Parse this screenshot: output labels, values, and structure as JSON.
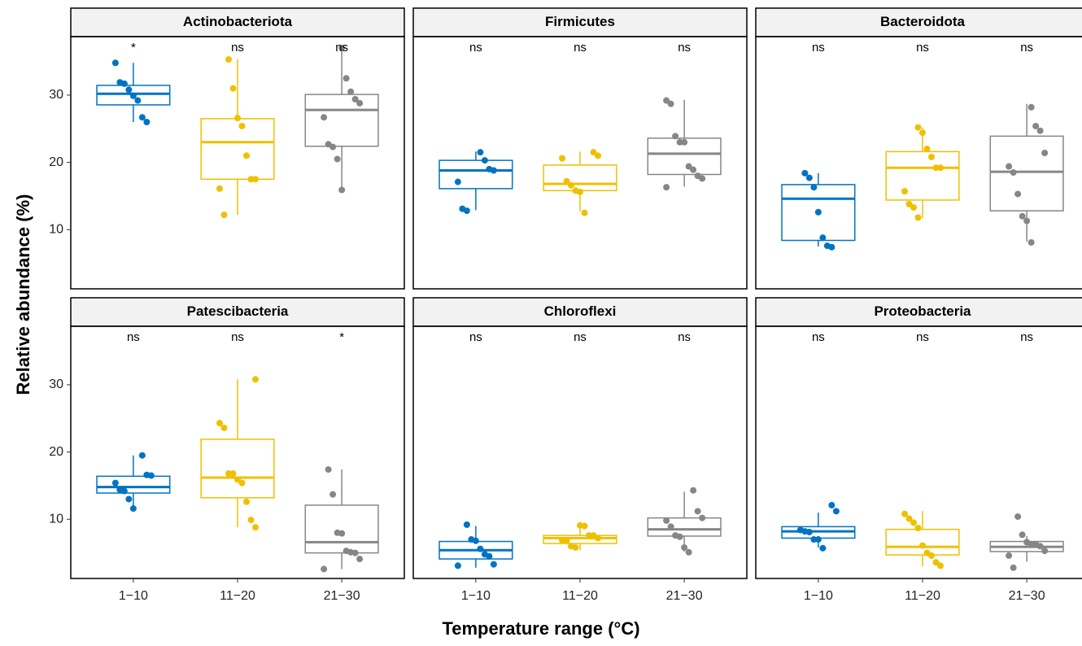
{
  "chart_data": {
    "type": "box",
    "x_label": "Temperature range (°C)",
    "y_label": "Relative abundance (%)",
    "categories": [
      "1−10",
      "11−20",
      "21−30"
    ],
    "colors": [
      "#0073C2",
      "#EFC000",
      "#868686"
    ],
    "ylim": [
      1.2,
      38.7
    ],
    "yticks": [
      10,
      20,
      30
    ],
    "panels": [
      {
        "title": "Actinobacteriota",
        "boxes": [
          {
            "min": 26.0,
            "q1": 28.55,
            "median": 30.2,
            "q3": 31.45,
            "max": 34.8,
            "points": [
              34.8,
              31.9,
              31.7,
              30.8,
              29.9,
              29.2,
              26.7,
              26.0
            ],
            "label": "*"
          },
          {
            "min": 12.2,
            "q1": 17.5,
            "median": 23.0,
            "q3": 26.5,
            "max": 35.3,
            "points": [
              35.3,
              31.0,
              26.6,
              25.4,
              21.0,
              17.5,
              17.5,
              16.1,
              12.2
            ],
            "label": "ns"
          },
          {
            "min": 15.9,
            "q1": 22.4,
            "median": 27.8,
            "q3": 30.1,
            "max": 37.0,
            "points": [
              37.0,
              32.5,
              30.5,
              29.4,
              28.8,
              26.7,
              22.7,
              22.3,
              20.5,
              15.9
            ],
            "label": "ns"
          }
        ]
      },
      {
        "title": "Firmicutes",
        "boxes": [
          {
            "min": 12.9,
            "q1": 16.1,
            "median": 18.8,
            "q3": 20.3,
            "max": 21.6,
            "points": [
              21.5,
              20.3,
              19.0,
              18.8,
              17.1,
              13.1,
              12.8
            ],
            "label": "ns"
          },
          {
            "min": 12.7,
            "q1": 15.8,
            "median": 16.8,
            "q3": 19.6,
            "max": 21.6,
            "points": [
              21.5,
              21.0,
              20.6,
              17.2,
              16.6,
              15.8,
              15.6,
              12.5
            ],
            "label": "ns"
          },
          {
            "min": 16.4,
            "q1": 18.2,
            "median": 21.3,
            "q3": 23.6,
            "max": 29.3,
            "points": [
              29.2,
              28.7,
              23.9,
              23.0,
              23.0,
              19.4,
              18.9,
              18.0,
              17.6,
              16.3
            ],
            "label": "ns"
          }
        ]
      },
      {
        "title": "Bacteroidota",
        "boxes": [
          {
            "min": 7.5,
            "q1": 8.4,
            "median": 14.6,
            "q3": 16.7,
            "max": 18.4,
            "points": [
              18.4,
              17.7,
              16.3,
              12.6,
              8.8,
              7.6,
              7.4
            ],
            "label": "ns"
          },
          {
            "min": 11.7,
            "q1": 14.4,
            "median": 19.2,
            "q3": 21.6,
            "max": 25.2,
            "points": [
              25.2,
              24.4,
              22.0,
              20.8,
              19.2,
              19.2,
              15.7,
              13.8,
              13.3,
              11.8
            ],
            "label": "ns"
          },
          {
            "min": 8.2,
            "q1": 12.8,
            "median": 18.6,
            "q3": 23.9,
            "max": 28.7,
            "points": [
              28.2,
              25.4,
              24.7,
              21.4,
              19.4,
              18.5,
              15.3,
              12.0,
              11.3,
              8.1
            ],
            "label": "ns"
          }
        ]
      },
      {
        "title": "Patescibacteria",
        "boxes": [
          {
            "min": 11.7,
            "q1": 13.9,
            "median": 14.8,
            "q3": 16.4,
            "max": 19.5,
            "points": [
              19.5,
              16.6,
              16.5,
              15.4,
              14.4,
              14.2,
              13.0,
              11.6
            ],
            "label": "ns"
          },
          {
            "min": 8.8,
            "q1": 13.2,
            "median": 16.2,
            "q3": 21.9,
            "max": 30.8,
            "points": [
              30.8,
              24.3,
              23.6,
              16.8,
              16.8,
              15.9,
              15.4,
              12.6,
              9.9,
              8.8
            ],
            "label": "ns"
          },
          {
            "min": 2.6,
            "q1": 5.0,
            "median": 6.6,
            "q3": 12.1,
            "max": 17.4,
            "points": [
              17.4,
              13.7,
              8.0,
              7.9,
              5.3,
              5.1,
              5.0,
              4.1,
              2.6
            ],
            "label": "*"
          }
        ]
      },
      {
        "title": "Chloroflexi",
        "boxes": [
          {
            "min": 2.8,
            "q1": 4.1,
            "median": 5.4,
            "q3": 6.7,
            "max": 9.0,
            "points": [
              9.2,
              7.0,
              6.8,
              5.6,
              4.8,
              4.5,
              3.3,
              3.1
            ],
            "label": "ns"
          },
          {
            "min": 5.4,
            "q1": 6.4,
            "median": 7.2,
            "q3": 7.6,
            "max": 9.2,
            "points": [
              9.1,
              9.0,
              7.6,
              7.6,
              7.2,
              6.9,
              6.8,
              6.0,
              5.8
            ],
            "label": "ns"
          },
          {
            "min": 5.2,
            "q1": 7.5,
            "median": 8.5,
            "q3": 10.2,
            "max": 14.1,
            "points": [
              14.3,
              11.2,
              10.2,
              9.8,
              8.9,
              7.6,
              7.4,
              5.8,
              5.1
            ],
            "label": "ns"
          }
        ]
      },
      {
        "title": "Proteobacteria",
        "boxes": [
          {
            "min": 5.8,
            "q1": 7.2,
            "median": 8.2,
            "q3": 8.9,
            "max": 11.0,
            "points": [
              12.1,
              11.2,
              8.4,
              8.2,
              8.1,
              7.0,
              7.0,
              5.7
            ],
            "label": "ns"
          },
          {
            "min": 3.0,
            "q1": 4.7,
            "median": 5.9,
            "q3": 8.5,
            "max": 11.2,
            "points": [
              10.8,
              10.1,
              9.5,
              8.7,
              6.1,
              5.0,
              4.6,
              3.6,
              3.1
            ],
            "label": "ns"
          },
          {
            "min": 3.7,
            "q1": 5.2,
            "median": 5.9,
            "q3": 6.7,
            "max": 7.5,
            "points": [
              10.4,
              7.7,
              6.6,
              6.3,
              6.3,
              6.0,
              5.3,
              4.6,
              2.8
            ],
            "label": "ns"
          }
        ]
      }
    ]
  }
}
